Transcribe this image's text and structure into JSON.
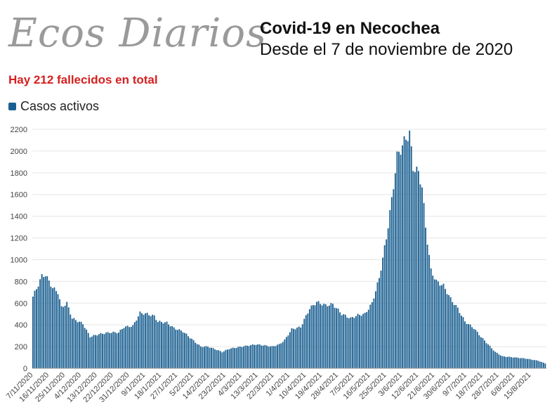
{
  "brand": {
    "logo_text": "Ecos Diarios"
  },
  "header": {
    "title": "Covid-19 en Necochea",
    "subtitle": "Desde el 7 de noviembre de 2020"
  },
  "note": "Hay 212 fallecidos en total",
  "colors": {
    "bar": "#1a5f91",
    "note": "#d62020",
    "grid": "#e6e6e6",
    "logo": "#9a9a9a"
  },
  "chart_data": {
    "type": "bar",
    "title": "Covid-19 en Necochea",
    "subtitle": "Desde el 7 de noviembre de 2020",
    "legend": {
      "position": "top-left"
    },
    "grid": true,
    "ylim": [
      0,
      2200
    ],
    "yticks": [
      0,
      200,
      400,
      600,
      800,
      1000,
      1200,
      1400,
      1600,
      1800,
      2000,
      2200
    ],
    "x_start": "2020-11-07",
    "x_end": "2021-08-21",
    "xtick_labels": [
      "7/11/2020",
      "16/11/2020",
      "25/11/2020",
      "4/12/2020",
      "13/12/2020",
      "22/12/2020",
      "31/12/2020",
      "9/1/2021",
      "18/1/2021",
      "27/1/2021",
      "5/2/2021",
      "14/2/2021",
      "23/2/2021",
      "4/3/2021",
      "13/3/2021",
      "22/3/2021",
      "1/4/2021",
      "10/4/2021",
      "19/4/2021",
      "28/4/2021",
      "7/5/2021",
      "16/5/2021",
      "25/5/2021",
      "3/6/2021",
      "12/6/2021",
      "21/6/2021",
      "30/6/2021",
      "9/7/2021",
      "18/7/2021",
      "28/7/2021",
      "6/8/2021",
      "15/8/2021"
    ],
    "series": [
      {
        "name": "Casos activos",
        "keypoints": [
          [
            "2020-11-07",
            660
          ],
          [
            "2020-11-10",
            770
          ],
          [
            "2020-11-12",
            850
          ],
          [
            "2020-11-14",
            860
          ],
          [
            "2020-11-18",
            740
          ],
          [
            "2020-11-21",
            700
          ],
          [
            "2020-11-23",
            560
          ],
          [
            "2020-11-26",
            600
          ],
          [
            "2020-11-29",
            460
          ],
          [
            "2020-12-05",
            410
          ],
          [
            "2020-12-09",
            290
          ],
          [
            "2020-12-13",
            310
          ],
          [
            "2020-12-16",
            320
          ],
          [
            "2020-12-20",
            330
          ],
          [
            "2020-12-25",
            330
          ],
          [
            "2020-12-28",
            380
          ],
          [
            "2021-01-02",
            390
          ],
          [
            "2021-01-06",
            510
          ],
          [
            "2021-01-10",
            500
          ],
          [
            "2021-01-14",
            480
          ],
          [
            "2021-01-16",
            430
          ],
          [
            "2021-01-21",
            420
          ],
          [
            "2021-01-25",
            370
          ],
          [
            "2021-01-30",
            340
          ],
          [
            "2021-02-06",
            240
          ],
          [
            "2021-02-09",
            200
          ],
          [
            "2021-02-13",
            200
          ],
          [
            "2021-02-18",
            170
          ],
          [
            "2021-02-21",
            150
          ],
          [
            "2021-02-25",
            180
          ],
          [
            "2021-03-04",
            200
          ],
          [
            "2021-03-12",
            220
          ],
          [
            "2021-03-17",
            210
          ],
          [
            "2021-03-21",
            200
          ],
          [
            "2021-03-25",
            220
          ],
          [
            "2021-03-28",
            260
          ],
          [
            "2021-04-01",
            360
          ],
          [
            "2021-04-06",
            380
          ],
          [
            "2021-04-11",
            550
          ],
          [
            "2021-04-15",
            610
          ],
          [
            "2021-04-20",
            580
          ],
          [
            "2021-04-24",
            590
          ],
          [
            "2021-04-29",
            500
          ],
          [
            "2021-05-04",
            460
          ],
          [
            "2021-05-08",
            490
          ],
          [
            "2021-05-12",
            500
          ],
          [
            "2021-05-16",
            600
          ],
          [
            "2021-05-20",
            830
          ],
          [
            "2021-05-24",
            1200
          ],
          [
            "2021-05-27",
            1550
          ],
          [
            "2021-05-30",
            1950
          ],
          [
            "2021-06-02",
            2050
          ],
          [
            "2021-06-04",
            2120
          ],
          [
            "2021-06-06",
            2160
          ],
          [
            "2021-06-08",
            1850
          ],
          [
            "2021-06-11",
            1800
          ],
          [
            "2021-06-13",
            1670
          ],
          [
            "2021-06-15",
            1300
          ],
          [
            "2021-06-18",
            900
          ],
          [
            "2021-06-21",
            800
          ],
          [
            "2021-06-25",
            760
          ],
          [
            "2021-06-29",
            640
          ],
          [
            "2021-07-03",
            550
          ],
          [
            "2021-07-07",
            430
          ],
          [
            "2021-07-12",
            370
          ],
          [
            "2021-07-16",
            290
          ],
          [
            "2021-07-20",
            220
          ],
          [
            "2021-07-24",
            150
          ],
          [
            "2021-07-28",
            110
          ],
          [
            "2021-08-04",
            100
          ],
          [
            "2021-08-10",
            90
          ],
          [
            "2021-08-17",
            70
          ],
          [
            "2021-08-21",
            45
          ]
        ]
      }
    ]
  }
}
